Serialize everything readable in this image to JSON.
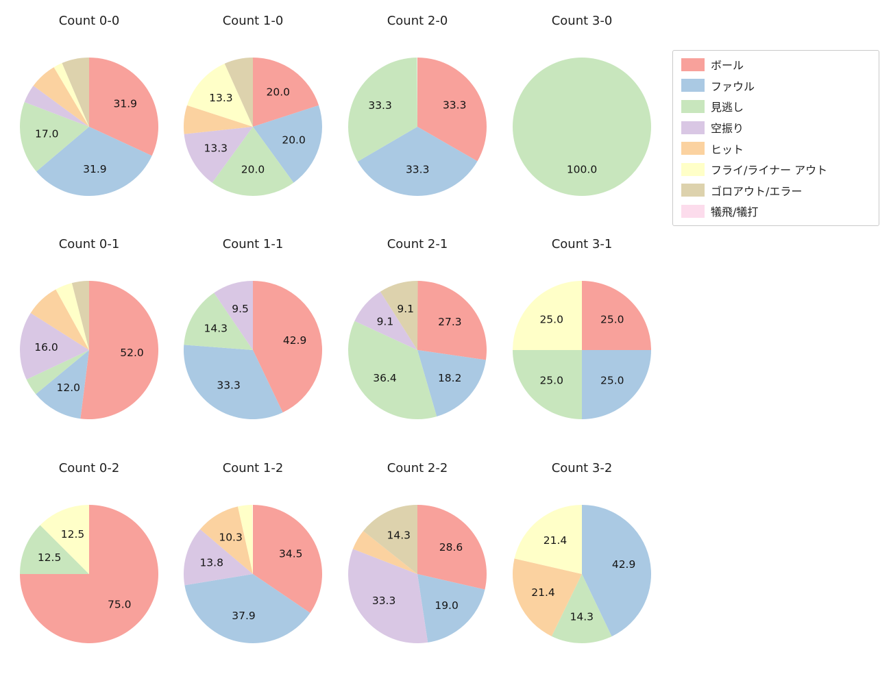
{
  "page": {
    "background_color": "#ffffff"
  },
  "legend": {
    "items": [
      {
        "key": "ball",
        "label": "ボール",
        "color": "#f8a19b"
      },
      {
        "key": "foul",
        "label": "ファウル",
        "color": "#aac9e3"
      },
      {
        "key": "called-strike",
        "label": "見逃し",
        "color": "#c8e6bd"
      },
      {
        "key": "swing-miss",
        "label": "空振り",
        "color": "#d9c7e4"
      },
      {
        "key": "hit",
        "label": "ヒット",
        "color": "#fbd2a0"
      },
      {
        "key": "fly-liner-out",
        "label": "フライ/ライナー アウト",
        "color": "#ffffc8"
      },
      {
        "key": "groundout-error",
        "label": "ゴロアウト/エラー",
        "color": "#ddd2ad"
      },
      {
        "key": "sac-fly-bunt",
        "label": "犠飛/犠打",
        "color": "#fcdcec"
      }
    ]
  },
  "chart_data": [
    {
      "type": "pie",
      "title": "Count 0-0",
      "slices": [
        {
          "key": "ball",
          "name": "ボール",
          "value": 31.9,
          "label": "31.9"
        },
        {
          "key": "foul",
          "name": "ファウル",
          "value": 31.9,
          "label": "31.9"
        },
        {
          "key": "called-strike",
          "name": "見逃し",
          "value": 17.0,
          "label": "17.0"
        },
        {
          "key": "swing-miss",
          "name": "空振り",
          "value": 4.3,
          "label": ""
        },
        {
          "key": "hit",
          "name": "ヒット",
          "value": 6.4,
          "label": ""
        },
        {
          "key": "fly-liner-out",
          "name": "フライ/ライナー アウト",
          "value": 2.1,
          "label": ""
        },
        {
          "key": "groundout-error",
          "name": "ゴロアウト/エラー",
          "value": 6.4,
          "label": ""
        }
      ]
    },
    {
      "type": "pie",
      "title": "Count 1-0",
      "slices": [
        {
          "key": "ball",
          "name": "ボール",
          "value": 20.0,
          "label": "20.0"
        },
        {
          "key": "foul",
          "name": "ファウル",
          "value": 20.0,
          "label": "20.0"
        },
        {
          "key": "called-strike",
          "name": "見逃し",
          "value": 20.0,
          "label": "20.0"
        },
        {
          "key": "swing-miss",
          "name": "空振り",
          "value": 13.3,
          "label": "13.3"
        },
        {
          "key": "hit",
          "name": "ヒット",
          "value": 6.7,
          "label": ""
        },
        {
          "key": "fly-liner-out",
          "name": "フライ/ライナー アウト",
          "value": 13.3,
          "label": "13.3"
        },
        {
          "key": "groundout-error",
          "name": "ゴロアウト/エラー",
          "value": 6.7,
          "label": ""
        }
      ]
    },
    {
      "type": "pie",
      "title": "Count 2-0",
      "slices": [
        {
          "key": "ball",
          "name": "ボール",
          "value": 33.3,
          "label": "33.3"
        },
        {
          "key": "foul",
          "name": "ファウル",
          "value": 33.3,
          "label": "33.3"
        },
        {
          "key": "called-strike",
          "name": "見逃し",
          "value": 33.3,
          "label": "33.3"
        }
      ]
    },
    {
      "type": "pie",
      "title": "Count 3-0",
      "slices": [
        {
          "key": "called-strike",
          "name": "見逃し",
          "value": 100.0,
          "label": "100.0"
        }
      ]
    },
    {
      "type": "pie",
      "title": "Count 0-1",
      "slices": [
        {
          "key": "ball",
          "name": "ボール",
          "value": 52.0,
          "label": "52.0"
        },
        {
          "key": "foul",
          "name": "ファウル",
          "value": 12.0,
          "label": "12.0"
        },
        {
          "key": "called-strike",
          "name": "見逃し",
          "value": 4.0,
          "label": ""
        },
        {
          "key": "swing-miss",
          "name": "空振り",
          "value": 16.0,
          "label": "16.0"
        },
        {
          "key": "hit",
          "name": "ヒット",
          "value": 8.0,
          "label": ""
        },
        {
          "key": "fly-liner-out",
          "name": "フライ/ライナー アウト",
          "value": 4.0,
          "label": ""
        },
        {
          "key": "groundout-error",
          "name": "ゴロアウト/エラー",
          "value": 4.0,
          "label": ""
        }
      ]
    },
    {
      "type": "pie",
      "title": "Count 1-1",
      "slices": [
        {
          "key": "ball",
          "name": "ボール",
          "value": 42.9,
          "label": "42.9"
        },
        {
          "key": "foul",
          "name": "ファウル",
          "value": 33.3,
          "label": "33.3"
        },
        {
          "key": "called-strike",
          "name": "見逃し",
          "value": 14.3,
          "label": "14.3"
        },
        {
          "key": "swing-miss",
          "name": "空振り",
          "value": 9.5,
          "label": "9.5"
        }
      ]
    },
    {
      "type": "pie",
      "title": "Count 2-1",
      "slices": [
        {
          "key": "ball",
          "name": "ボール",
          "value": 27.3,
          "label": "27.3"
        },
        {
          "key": "foul",
          "name": "ファウル",
          "value": 18.2,
          "label": "18.2"
        },
        {
          "key": "called-strike",
          "name": "見逃し",
          "value": 36.4,
          "label": "36.4"
        },
        {
          "key": "swing-miss",
          "name": "空振り",
          "value": 9.1,
          "label": "9.1"
        },
        {
          "key": "groundout-error",
          "name": "ゴロアウト/エラー",
          "value": 9.1,
          "label": "9.1"
        }
      ]
    },
    {
      "type": "pie",
      "title": "Count 3-1",
      "slices": [
        {
          "key": "ball",
          "name": "ボール",
          "value": 25.0,
          "label": "25.0"
        },
        {
          "key": "foul",
          "name": "ファウル",
          "value": 25.0,
          "label": "25.0"
        },
        {
          "key": "called-strike",
          "name": "見逃し",
          "value": 25.0,
          "label": "25.0"
        },
        {
          "key": "fly-liner-out",
          "name": "フライ/ライナー アウト",
          "value": 25.0,
          "label": "25.0"
        }
      ]
    },
    {
      "type": "pie",
      "title": "Count 0-2",
      "slices": [
        {
          "key": "ball",
          "name": "ボール",
          "value": 75.0,
          "label": "75.0"
        },
        {
          "key": "called-strike",
          "name": "見逃し",
          "value": 12.5,
          "label": "12.5"
        },
        {
          "key": "fly-liner-out",
          "name": "フライ/ライナー アウト",
          "value": 12.5,
          "label": "12.5"
        }
      ]
    },
    {
      "type": "pie",
      "title": "Count 1-2",
      "slices": [
        {
          "key": "ball",
          "name": "ボール",
          "value": 34.5,
          "label": "34.5"
        },
        {
          "key": "foul",
          "name": "ファウル",
          "value": 37.9,
          "label": "37.9"
        },
        {
          "key": "swing-miss",
          "name": "空振り",
          "value": 13.8,
          "label": "13.8"
        },
        {
          "key": "hit",
          "name": "ヒット",
          "value": 10.3,
          "label": "10.3"
        },
        {
          "key": "fly-liner-out",
          "name": "フライ/ライナー アウト",
          "value": 3.4,
          "label": ""
        }
      ]
    },
    {
      "type": "pie",
      "title": "Count 2-2",
      "slices": [
        {
          "key": "ball",
          "name": "ボール",
          "value": 28.6,
          "label": "28.6"
        },
        {
          "key": "foul",
          "name": "ファウル",
          "value": 19.0,
          "label": "19.0"
        },
        {
          "key": "swing-miss",
          "name": "空振り",
          "value": 33.3,
          "label": "33.3"
        },
        {
          "key": "hit",
          "name": "ヒット",
          "value": 4.8,
          "label": ""
        },
        {
          "key": "groundout-error",
          "name": "ゴロアウト/エラー",
          "value": 14.3,
          "label": "14.3"
        }
      ]
    },
    {
      "type": "pie",
      "title": "Count 3-2",
      "slices": [
        {
          "key": "foul",
          "name": "ファウル",
          "value": 42.9,
          "label": "42.9"
        },
        {
          "key": "called-strike",
          "name": "見逃し",
          "value": 14.3,
          "label": "14.3"
        },
        {
          "key": "hit",
          "name": "ヒット",
          "value": 21.4,
          "label": "21.4"
        },
        {
          "key": "fly-liner-out",
          "name": "フライ/ライナー アウト",
          "value": 21.4,
          "label": "21.4"
        }
      ]
    }
  ]
}
